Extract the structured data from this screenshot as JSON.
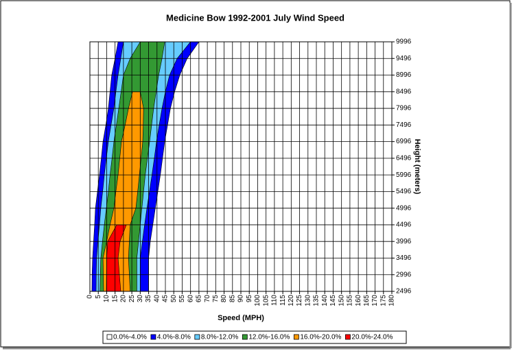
{
  "chart_data": {
    "type": "contour",
    "title": "Medicine Bow 1992-2001 July Wind Speed",
    "x_label": "Speed (MPH)",
    "y_label": "Height (meters)",
    "xlim": [
      0,
      180
    ],
    "xticks": [
      0,
      5,
      10,
      15,
      20,
      25,
      30,
      35,
      40,
      45,
      50,
      55,
      60,
      65,
      70,
      75,
      80,
      85,
      90,
      95,
      100,
      105,
      110,
      115,
      120,
      125,
      130,
      135,
      140,
      145,
      150,
      155,
      160,
      165,
      170,
      175,
      180
    ],
    "ylim": [
      2496,
      9996
    ],
    "yticks": [
      2496,
      2996,
      3496,
      3996,
      4496,
      4996,
      5496,
      5996,
      6496,
      6996,
      7496,
      7996,
      8496,
      8996,
      9496,
      9996
    ],
    "grid": true,
    "y": [
      2496,
      2996,
      3496,
      3996,
      4496,
      4996,
      5496,
      5996,
      6496,
      6996,
      7496,
      7996,
      8496,
      8996,
      9496,
      9996
    ],
    "series": [
      {
        "name": "0.0%-4.0%",
        "color": "#ffffff"
      },
      {
        "name": "4.0%-8.0%",
        "color": "#0000ff",
        "left": [
          1.2,
          1.3,
          1.6,
          2.2,
          2.8,
          3.3,
          4.5,
          5.7,
          6.8,
          7.8,
          9.5,
          11,
          12,
          13,
          15,
          16.8
        ],
        "right": [
          35,
          35,
          35,
          36,
          37.5,
          39,
          40.5,
          42,
          43.3,
          44.6,
          46.3,
          48,
          50.5,
          53.6,
          58,
          65
        ]
      },
      {
        "name": "8.0%-12.0%",
        "color": "#66ccff",
        "left": [
          3.7,
          3.8,
          4,
          4.8,
          5.7,
          6.5,
          7.6,
          8.6,
          9.8,
          11,
          12.6,
          14.3,
          15.5,
          16.8,
          18.4,
          20
        ],
        "right": [
          30,
          30,
          30,
          31.3,
          32.6,
          34,
          35.5,
          37,
          38.4,
          39.7,
          41.3,
          43,
          45,
          47.5,
          52,
          60
        ]
      },
      {
        "name": "12.0%-16.0%",
        "color": "#339933",
        "left": [
          6,
          6.2,
          6.5,
          7.5,
          8.6,
          9.8,
          11,
          12,
          13.2,
          14.3,
          15.8,
          17.2,
          18.6,
          20,
          24,
          30
        ],
        "right": [
          28,
          28,
          28,
          29,
          30,
          31,
          32,
          33,
          34.3,
          35.6,
          36.8,
          38,
          39.5,
          41,
          43,
          44.6
        ]
      },
      {
        "name": "16.0%-20.0%",
        "color": "#ff9900",
        "left": [
          8.2,
          8,
          7.8,
          10,
          12,
          14.3,
          15.5,
          16.8,
          17.8,
          18.8,
          21,
          23,
          25.4,
          null,
          null,
          null
        ],
        "right": [
          24,
          23.5,
          23,
          23.5,
          24,
          27.4,
          28.5,
          29.5,
          30.5,
          31.5,
          31.8,
          32,
          30,
          null,
          null,
          null
        ]
      },
      {
        "name": "20.0%-24.0%",
        "color": "#ff0000",
        "left": [
          9.8,
          9.9,
          10,
          10.6,
          16,
          null,
          null,
          null,
          null,
          null,
          null,
          null,
          null,
          null,
          null,
          null
        ],
        "right": [
          18.4,
          17.6,
          16.8,
          18,
          21.7,
          null,
          null,
          null,
          null,
          null,
          null,
          null,
          null,
          null,
          null,
          null
        ]
      }
    ]
  }
}
